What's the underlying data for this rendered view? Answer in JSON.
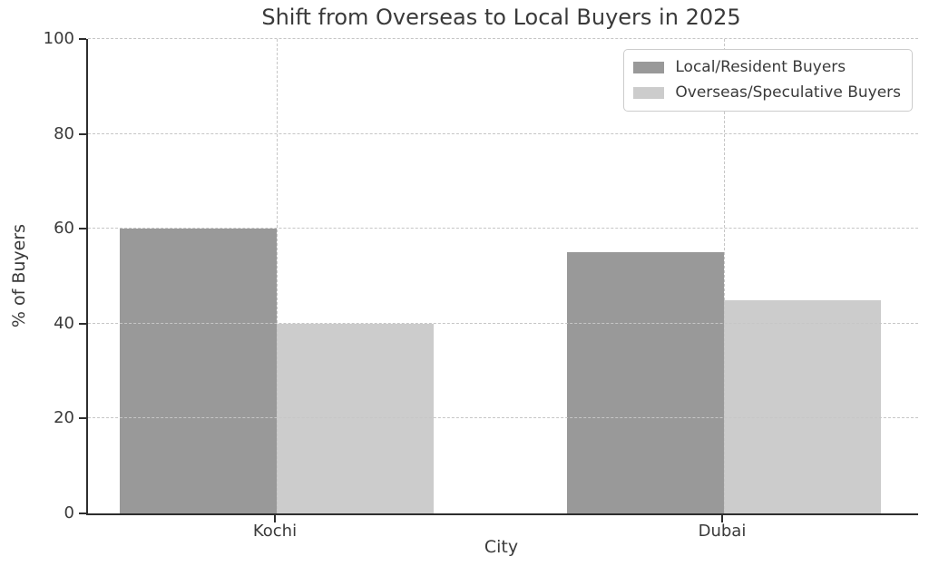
{
  "figure": {
    "background": "#ffffff",
    "text_color": "#3a3a3a",
    "spine_color": "#2e2e2e",
    "grid_color": "#c6c6c6"
  },
  "chart_data": {
    "type": "bar",
    "title": "Shift from Overseas to Local Buyers in 2025",
    "xlabel": "City",
    "ylabel": "% of Buyers",
    "categories": [
      "Kochi",
      "Dubai"
    ],
    "series": [
      {
        "name": "Local/Resident Buyers",
        "color": "#999999",
        "values": [
          60,
          55
        ]
      },
      {
        "name": "Overseas/Speculative Buyers",
        "color": "#cccccc",
        "values": [
          40,
          45
        ]
      }
    ],
    "ylim": [
      0,
      100
    ],
    "yticks": [
      0,
      20,
      40,
      60,
      80,
      100
    ],
    "grid": "dashed",
    "grid_above_bars": true,
    "legend_position": "upper right"
  }
}
